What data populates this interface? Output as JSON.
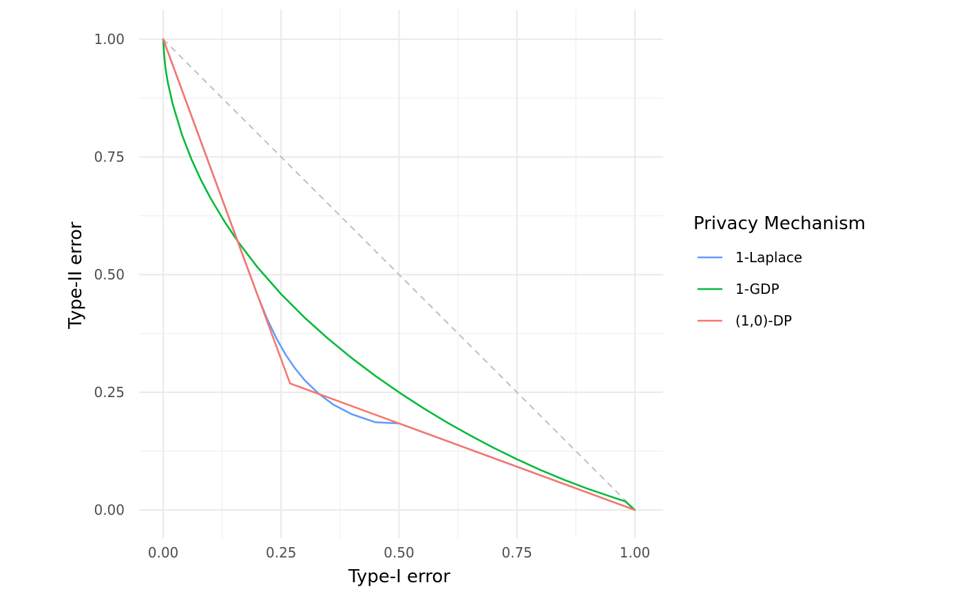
{
  "chart_data": {
    "type": "line",
    "title": "",
    "xlabel": "Type-I error",
    "ylabel": "Type-II error",
    "xlim": [
      -0.05,
      1.06
    ],
    "ylim": [
      -0.06,
      1.06
    ],
    "x_ticks": [
      0,
      0.25,
      0.5,
      0.75,
      1
    ],
    "x_tick_labels": [
      "0.00",
      "0.25",
      "0.50",
      "0.75",
      "1.00"
    ],
    "y_ticks": [
      0,
      0.25,
      0.5,
      0.75,
      1
    ],
    "y_tick_labels": [
      "0.00",
      "0.25",
      "0.50",
      "0.75",
      "1.00"
    ],
    "grid": true,
    "legend": {
      "title": "Privacy Mechanism",
      "position": "right",
      "entries": [
        "1-Laplace",
        "1-GDP",
        "(1,0)-DP"
      ]
    },
    "reference_line": {
      "x": [
        0,
        1
      ],
      "y": [
        1,
        0
      ],
      "style": "dashed",
      "color": "#bebebe"
    },
    "series": [
      {
        "name": "1-Laplace",
        "color": "#619cff",
        "x": [
          0.0,
          0.05,
          0.1,
          0.15,
          0.184,
          0.2,
          0.22,
          0.24,
          0.26,
          0.28,
          0.3,
          0.33,
          0.36,
          0.4,
          0.45,
          0.5,
          0.6,
          0.7,
          0.8,
          0.9,
          1.0
        ],
        "y": [
          1.0,
          0.864,
          0.728,
          0.592,
          0.5,
          0.4563,
          0.4067,
          0.3646,
          0.3293,
          0.3001,
          0.2757,
          0.2466,
          0.2243,
          0.2034,
          0.1862,
          0.1839,
          0.1472,
          0.1104,
          0.0736,
          0.0368,
          0.0
        ]
      },
      {
        "name": "1-GDP",
        "color": "#00ba38",
        "x": [
          0.0,
          0.002,
          0.005,
          0.01,
          0.02,
          0.04,
          0.06,
          0.08,
          0.1,
          0.13,
          0.16,
          0.2,
          0.25,
          0.3,
          0.35,
          0.4,
          0.45,
          0.5,
          0.55,
          0.6,
          0.65,
          0.7,
          0.75,
          0.8,
          0.85,
          0.9,
          0.95,
          0.98,
          1.0
        ],
        "y": [
          1.0,
          0.9665,
          0.9374,
          0.9076,
          0.8627,
          0.7965,
          0.7448,
          0.7012,
          0.663,
          0.6125,
          0.568,
          0.5155,
          0.4585,
          0.4085,
          0.3635,
          0.3225,
          0.2847,
          0.2498,
          0.2173,
          0.187,
          0.1587,
          0.1323,
          0.1077,
          0.0849,
          0.064,
          0.0451,
          0.0281,
          0.018,
          0.0
        ]
      },
      {
        "name": "(1,0)-DP",
        "color": "#f8766d",
        "x": [
          0.0,
          0.2689,
          1.0
        ],
        "y": [
          1.0,
          0.2689,
          0.0
        ]
      }
    ]
  }
}
